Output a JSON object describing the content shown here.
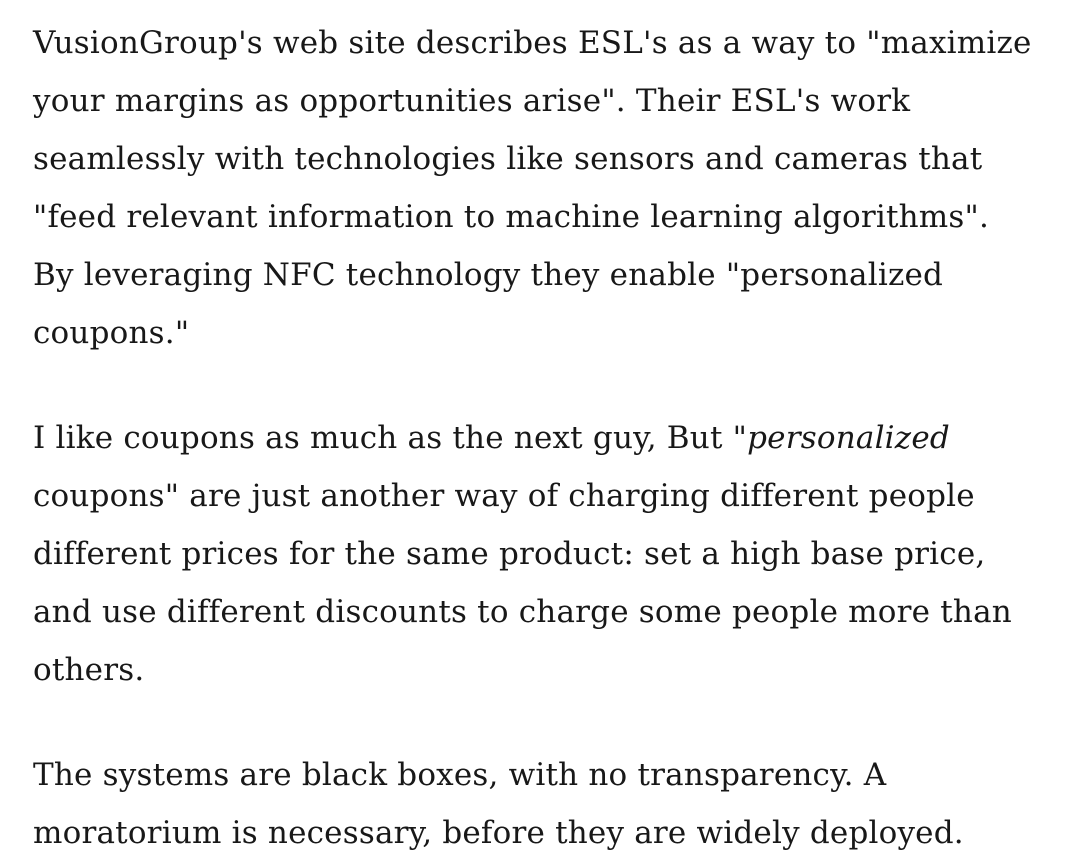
{
  "page": {
    "background_color": "#ffffff",
    "text_color": "#181818"
  },
  "article": {
    "paragraph_1": "VusionGroup's web site describes ESL's as a way to \"maximize your margins as opportunities arise\". Their ESL's work seamlessly with technologies like sensors and cameras that \"feed relevant information to machine learning algorithms\". By leveraging NFC technology they enable \"personalized coupons.\"",
    "paragraph_2_before": "I like coupons as much as the next guy, But \"",
    "paragraph_2_italic": "personalized",
    "paragraph_2_after": " coupons\" are just another way of charging different people different prices for the same product: set a high base price, and use different discounts to charge some people more than others.",
    "paragraph_3": "The systems are black boxes, with no transparency. A moratorium is necessary, before they are widely deployed."
  }
}
